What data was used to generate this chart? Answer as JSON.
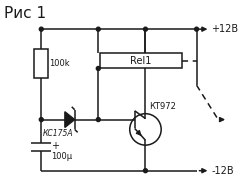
{
  "title": "Рис 1",
  "title_fontsize": 11,
  "bg_color": "#ffffff",
  "line_color": "#1a1a1a",
  "lw": 1.1,
  "fig_w": 2.44,
  "fig_h": 1.91,
  "dpi": 100,
  "labels": {
    "r1": "100k",
    "c1": "100μ",
    "d1": "КC175A",
    "t1": "КT972",
    "rel1": "Rel1",
    "vplus": "+12В",
    "vminus": "-12В"
  }
}
